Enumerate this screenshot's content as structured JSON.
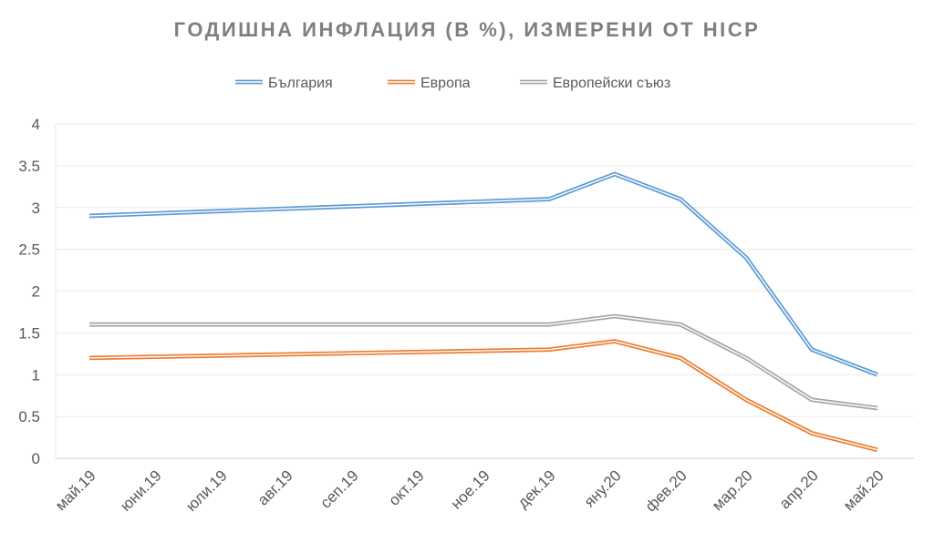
{
  "chart_data": {
    "type": "line",
    "title": "ГОДИШНА ИНФЛАЦИЯ (В %), ИЗМЕРЕНИ ОТ HICP",
    "xlabel": "",
    "ylabel": "",
    "ylim": [
      0,
      4
    ],
    "yticks": [
      "0",
      "0.5",
      "1",
      "1.5",
      "2",
      "2.5",
      "3",
      "3.5",
      "4"
    ],
    "grid": true,
    "legend_position": "top",
    "categories": [
      "май.19",
      "юни.19",
      "юли.19",
      "авг.19",
      "сеп.19",
      "окт.19",
      "ное.19",
      "дек.19",
      "яну.20",
      "фев.20",
      "мар.20",
      "апр.20",
      "май.20"
    ],
    "series": [
      {
        "name": "България",
        "color": "#5b9bd5",
        "values": [
          2.9,
          null,
          null,
          null,
          null,
          null,
          null,
          3.1,
          3.4,
          3.1,
          2.4,
          1.3,
          1.0
        ]
      },
      {
        "name": "Европа",
        "color": "#ed7d31",
        "values": [
          1.2,
          null,
          null,
          null,
          null,
          null,
          null,
          1.3,
          1.4,
          1.2,
          0.7,
          0.3,
          0.1
        ]
      },
      {
        "name": "Европейски съюз",
        "color": "#a5a5a5",
        "values": [
          1.6,
          null,
          null,
          null,
          null,
          null,
          null,
          1.6,
          1.7,
          1.6,
          1.2,
          0.7,
          0.6
        ]
      }
    ]
  }
}
